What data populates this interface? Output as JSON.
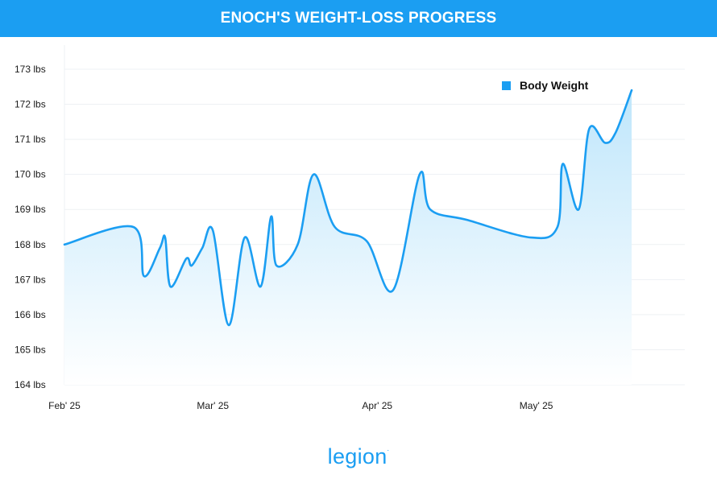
{
  "header": {
    "title": "ENOCH'S WEIGHT-LOSS PROGRESS"
  },
  "brand": {
    "logo_text": "legion",
    "mark": "."
  },
  "colors": {
    "accent": "#1b9ef2",
    "line": "#1b9ef2",
    "fill_top": "#bfe6fb",
    "fill_bottom": "#ffffff",
    "grid": "#edf1f4"
  },
  "chart_data": {
    "type": "area",
    "title": "",
    "xlabel": "",
    "ylabel": "",
    "ylim": [
      164,
      173
    ],
    "xlim": [
      "2025-02-01",
      "2025-05-28"
    ],
    "y_ticks": [
      {
        "value": 164,
        "label": "164 lbs"
      },
      {
        "value": 165,
        "label": "165 lbs"
      },
      {
        "value": 166,
        "label": "166 lbs"
      },
      {
        "value": 167,
        "label": "167 lbs"
      },
      {
        "value": 168,
        "label": "168 lbs"
      },
      {
        "value": 169,
        "label": "169 lbs"
      },
      {
        "value": 170,
        "label": "170 lbs"
      },
      {
        "value": 171,
        "label": "171 lbs"
      },
      {
        "value": 172,
        "label": "172 lbs"
      },
      {
        "value": 173,
        "label": "173 lbs"
      }
    ],
    "x_ticks": [
      {
        "date": "2025-02-01",
        "label": "Feb' 25"
      },
      {
        "date": "2025-03-01",
        "label": "Mar' 25"
      },
      {
        "date": "2025-04-01",
        "label": "Apr' 25"
      },
      {
        "date": "2025-05-01",
        "label": "May' 25"
      }
    ],
    "grid": true,
    "legend": {
      "placement": "top-right"
    },
    "series": [
      {
        "name": "Body Weight",
        "color": "#1b9ef2",
        "points": [
          {
            "x": "2025-02-01",
            "y": 168.0
          },
          {
            "x": "2025-02-14",
            "y": 168.5
          },
          {
            "x": "2025-02-16",
            "y": 167.1
          },
          {
            "x": "2025-02-19",
            "y": 167.9
          },
          {
            "x": "2025-02-20",
            "y": 168.2
          },
          {
            "x": "2025-02-21",
            "y": 166.8
          },
          {
            "x": "2025-02-24",
            "y": 167.6
          },
          {
            "x": "2025-02-25",
            "y": 167.4
          },
          {
            "x": "2025-02-27",
            "y": 167.9
          },
          {
            "x": "2025-03-01",
            "y": 168.4
          },
          {
            "x": "2025-03-04",
            "y": 165.7
          },
          {
            "x": "2025-03-07",
            "y": 168.2
          },
          {
            "x": "2025-03-10",
            "y": 166.8
          },
          {
            "x": "2025-03-12",
            "y": 168.8
          },
          {
            "x": "2025-03-13",
            "y": 167.4
          },
          {
            "x": "2025-03-17",
            "y": 168.0
          },
          {
            "x": "2025-03-20",
            "y": 170.0
          },
          {
            "x": "2025-03-24",
            "y": 168.5
          },
          {
            "x": "2025-03-30",
            "y": 168.1
          },
          {
            "x": "2025-04-04",
            "y": 166.7
          },
          {
            "x": "2025-04-09",
            "y": 170.0
          },
          {
            "x": "2025-04-11",
            "y": 169.0
          },
          {
            "x": "2025-04-18",
            "y": 168.7
          },
          {
            "x": "2025-04-30",
            "y": 168.2
          },
          {
            "x": "2025-05-05",
            "y": 168.5
          },
          {
            "x": "2025-05-06",
            "y": 170.3
          },
          {
            "x": "2025-05-09",
            "y": 169.0
          },
          {
            "x": "2025-05-11",
            "y": 171.3
          },
          {
            "x": "2025-05-14",
            "y": 170.9
          },
          {
            "x": "2025-05-16",
            "y": 171.2
          },
          {
            "x": "2025-05-19",
            "y": 172.4
          }
        ]
      }
    ]
  }
}
